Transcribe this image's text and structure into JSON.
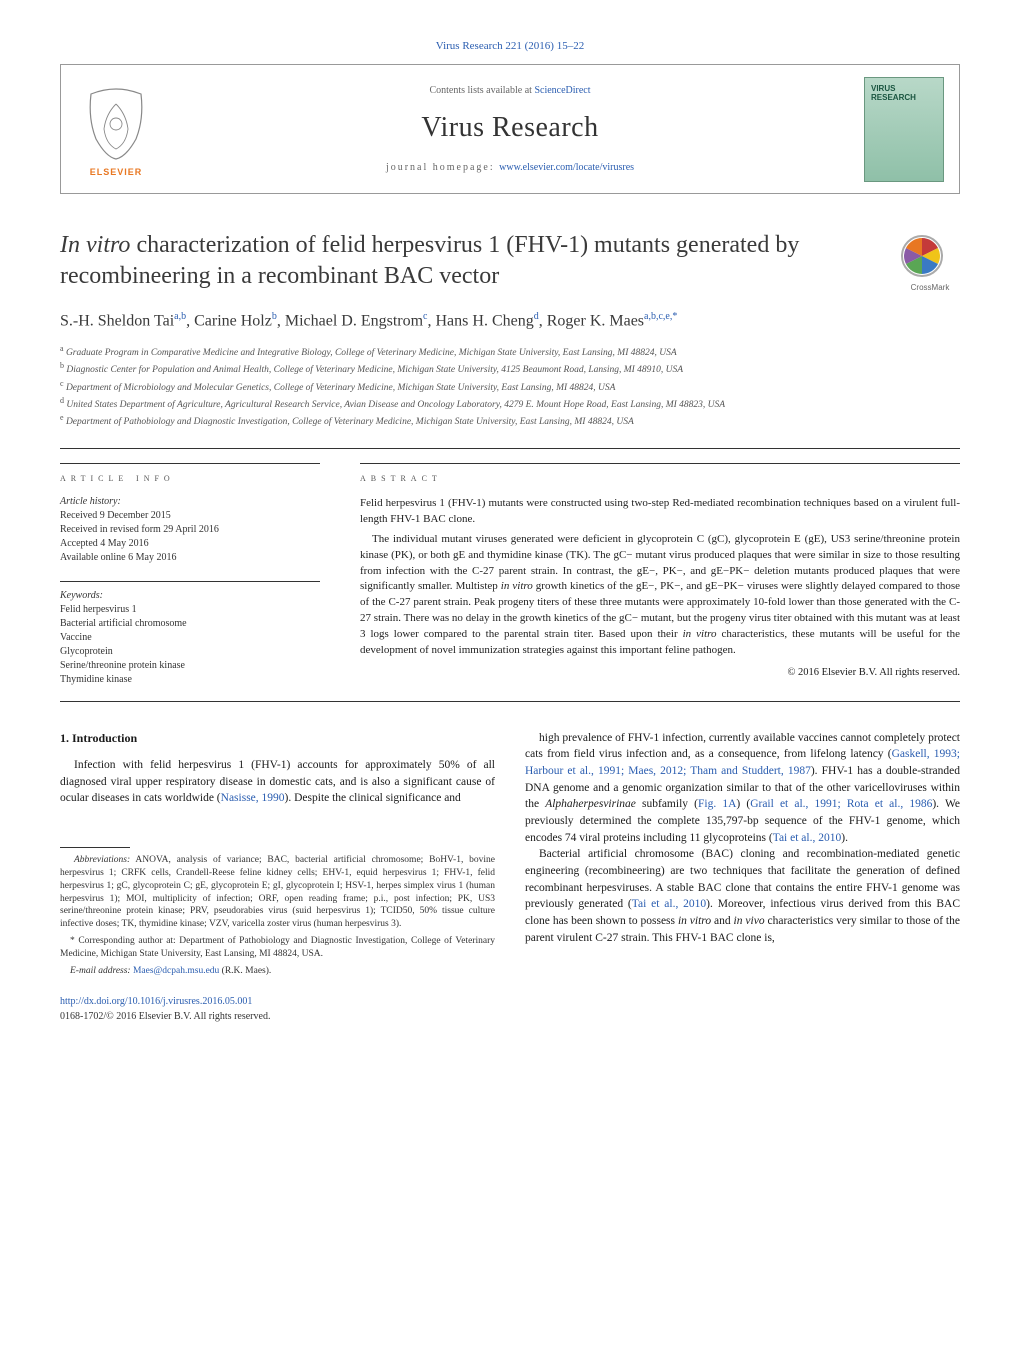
{
  "journal_ref": "Virus Research 221 (2016) 15–22",
  "header": {
    "contents_prefix": "Contents lists available at ",
    "contents_link": "ScienceDirect",
    "journal_title": "Virus Research",
    "homepage_prefix": "journal homepage: ",
    "homepage_link": "www.elsevier.com/locate/virusres",
    "cover_label": "VIRUS\nRESEARCH"
  },
  "article": {
    "title_pre_italic": "In vitro",
    "title_rest": " characterization of felid herpesvirus 1 (FHV-1) mutants generated by recombineering in a recombinant BAC vector",
    "authors_html": "S.-H. Sheldon Tai<sup>a,b</sup>, Carine Holz<sup>b</sup>, Michael D. Engstrom<sup>c</sup>, Hans H. Cheng<sup>d</sup>, Roger K. Maes<sup>a,b,c,e,*</sup>"
  },
  "affiliations": [
    {
      "key": "a",
      "text": "Graduate Program in Comparative Medicine and Integrative Biology, College of Veterinary Medicine, Michigan State University, East Lansing, MI 48824, USA"
    },
    {
      "key": "b",
      "text": "Diagnostic Center for Population and Animal Health, College of Veterinary Medicine, Michigan State University, 4125 Beaumont Road, Lansing, MI 48910, USA"
    },
    {
      "key": "c",
      "text": "Department of Microbiology and Molecular Genetics, College of Veterinary Medicine, Michigan State University, East Lansing, MI 48824, USA"
    },
    {
      "key": "d",
      "text": "United States Department of Agriculture, Agricultural Research Service, Avian Disease and Oncology Laboratory, 4279 E. Mount Hope Road, East Lansing, MI 48823, USA"
    },
    {
      "key": "e",
      "text": "Department of Pathobiology and Diagnostic Investigation, College of Veterinary Medicine, Michigan State University, East Lansing, MI 48824, USA"
    }
  ],
  "info": {
    "heading": "article info",
    "history_label": "Article history:",
    "history": [
      "Received 9 December 2015",
      "Received in revised form 29 April 2016",
      "Accepted 4 May 2016",
      "Available online 6 May 2016"
    ],
    "keywords_label": "Keywords:",
    "keywords": [
      "Felid herpesvirus 1",
      "Bacterial artificial chromosome",
      "Vaccine",
      "Glycoprotein",
      "Serine/threonine protein kinase",
      "Thymidine kinase"
    ]
  },
  "abstract": {
    "heading": "abstract",
    "paragraphs": [
      "Felid herpesvirus 1 (FHV-1) mutants were constructed using two-step Red-mediated recombination techniques based on a virulent full-length FHV-1 BAC clone.",
      "The individual mutant viruses generated were deficient in glycoprotein C (gC), glycoprotein E (gE), US3 serine/threonine protein kinase (PK), or both gE and thymidine kinase (TK). The gC− mutant virus produced plaques that were similar in size to those resulting from infection with the C-27 parent strain. In contrast, the gE−, PK−, and gE−PK− deletion mutants produced plaques that were significantly smaller. Multistep in vitro growth kinetics of the gE−, PK−, and gE−PK− viruses were slightly delayed compared to those of the C-27 parent strain. Peak progeny titers of these three mutants were approximately 10-fold lower than those generated with the C-27 strain. There was no delay in the growth kinetics of the gC− mutant, but the progeny virus titer obtained with this mutant was at least 3 logs lower compared to the parental strain titer. Based upon their in vitro characteristics, these mutants will be useful for the development of novel immunization strategies against this important feline pathogen."
    ],
    "copyright": "© 2016 Elsevier B.V. All rights reserved."
  },
  "body": {
    "intro_heading": "1. Introduction",
    "left_p1_pre": "Infection with felid herpesvirus 1 (FHV-1) accounts for approximately 50% of all diagnosed viral upper respiratory disease in domestic cats, and is also a significant cause of ocular diseases in cats worldwide (",
    "left_p1_link": "Nasisse, 1990",
    "left_p1_post": "). Despite the clinical significance and",
    "right_p1": "high prevalence of FHV-1 infection, currently available vaccines cannot completely protect cats from field virus infection and, as a consequence, from lifelong latency (Gaskell, 1993; Harbour et al., 1991; Maes, 2012; Tham and Studdert, 1987). FHV-1 has a double-stranded DNA genome and a genomic organization similar to that of the other varicelloviruses within the Alphaherpesvirinae subfamily (Fig. 1A) (Grail et al., 1991; Rota et al., 1986). We previously determined the complete 135,797-bp sequence of the FHV-1 genome, which encodes 74 viral proteins including 11 glycoproteins (Tai et al., 2010).",
    "right_p2": "Bacterial artificial chromosome (BAC) cloning and recombination-mediated genetic engineering (recombineering) are two techniques that facilitate the generation of defined recombinant herpesviruses. A stable BAC clone that contains the entire FHV-1 genome was previously generated (Tai et al., 2010). Moreover, infectious virus derived from this BAC clone has been shown to possess in vitro and in vivo characteristics very similar to those of the parent virulent C-27 strain. This FHV-1 BAC clone is,"
  },
  "footnotes": {
    "abbrev_label": "Abbreviations:",
    "abbrev_text": " ANOVA, analysis of variance; BAC, bacterial artificial chromosome; BoHV-1, bovine herpesvirus 1; CRFK cells, Crandell-Reese feline kidney cells; EHV-1, equid herpesvirus 1; FHV-1, felid herpesvirus 1; gC, glycoprotein C; gE, glycoprotein E; gI, glycoprotein I; HSV-1, herpes simplex virus 1 (human herpesvirus 1); MOI, multiplicity of infection; ORF, open reading frame; p.i., post infection; PK, US3 serine/threonine protein kinase; PRV, pseudorabies virus (suid herpesvirus 1); TCID50, 50% tissue culture infective doses; TK, thymidine kinase; VZV, varicella zoster virus (human herpesvirus 3).",
    "corr_label": "* Corresponding author at:",
    "corr_text": " Department of Pathobiology and Diagnostic Investigation, College of Veterinary Medicine, Michigan State University, East Lansing, MI 48824, USA.",
    "email_label": "E-mail address: ",
    "email_link": "Maes@dcpah.msu.edu",
    "email_post": " (R.K. Maes)."
  },
  "doi": {
    "link": "http://dx.doi.org/10.1016/j.virusres.2016.05.001",
    "issn_line": "0168-1702/© 2016 Elsevier B.V. All rights reserved."
  },
  "colors": {
    "link": "#2a5db0",
    "text": "#1a1a1a",
    "muted": "#666666",
    "rule": "#333333",
    "cover_top": "#b8d8c8",
    "cover_bottom": "#8fc0a8",
    "elsevier_orange": "#e87722"
  }
}
